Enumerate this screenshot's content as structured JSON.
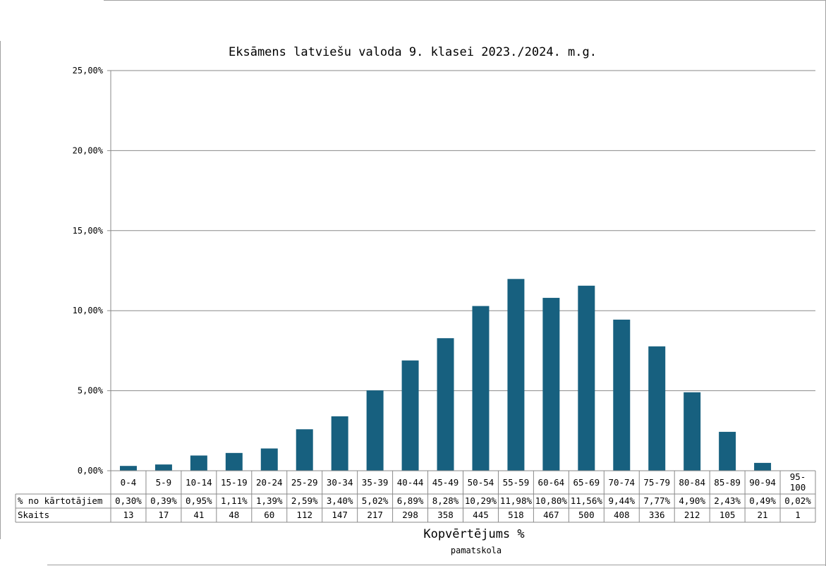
{
  "chart_data": {
    "type": "bar",
    "title": "Eksāmens latviešu valoda 9. klasei 2023./2024. m.g.",
    "xlabel": "Kopvērtējums %",
    "subtitle": "pamatskola",
    "ylim": [
      0,
      25
    ],
    "yticks": [
      0,
      5,
      10,
      15,
      20,
      25
    ],
    "ytick_labels": [
      "0,00%",
      "5,00%",
      "10,00%",
      "15,00%",
      "20,00%",
      "25,00%"
    ],
    "grid": true,
    "bar_color": "#17607f",
    "categories": [
      "0-4",
      "5-9",
      "10-14",
      "15-19",
      "20-24",
      "25-29",
      "30-34",
      "35-39",
      "40-44",
      "45-49",
      "50-54",
      "55-59",
      "60-64",
      "65-69",
      "70-74",
      "75-79",
      "80-84",
      "85-89",
      "90-94",
      "95-\n100"
    ],
    "values": [
      0.3,
      0.39,
      0.95,
      1.11,
      1.39,
      2.59,
      3.4,
      5.02,
      6.89,
      8.28,
      10.29,
      11.98,
      10.8,
      11.56,
      9.44,
      7.77,
      4.9,
      2.43,
      0.49,
      0.02
    ],
    "table": {
      "row1_label": "% no kārtotājiem",
      "row1": [
        "0,30%",
        "0,39%",
        "0,95%",
        "1,11%",
        "1,39%",
        "2,59%",
        "3,40%",
        "5,02%",
        "6,89%",
        "8,28%",
        "10,29%",
        "11,98%",
        "10,80%",
        "11,56%",
        "9,44%",
        "7,77%",
        "4,90%",
        "2,43%",
        "0,49%",
        "0,02%"
      ],
      "row2_label": "Skaits",
      "row2": [
        "13",
        "17",
        "41",
        "48",
        "60",
        "112",
        "147",
        "217",
        "298",
        "358",
        "445",
        "518",
        "467",
        "500",
        "408",
        "336",
        "212",
        "105",
        "21",
        "1"
      ]
    }
  }
}
